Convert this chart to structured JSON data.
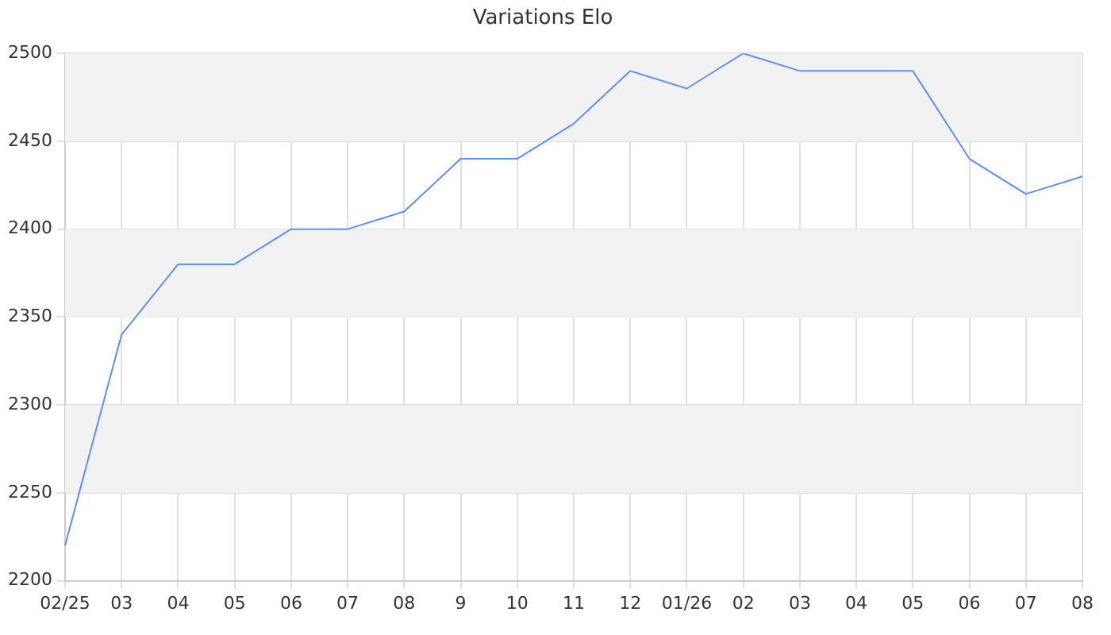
{
  "chart_data": {
    "type": "line",
    "title": "Variations Elo",
    "categories": [
      "02/25",
      "03",
      "04",
      "05",
      "06",
      "07",
      "08",
      "9",
      "10",
      "11",
      "12",
      "01/26",
      "02",
      "03",
      "04",
      "05",
      "06",
      "07",
      "08"
    ],
    "series": [
      {
        "color": "#5b8ff9",
        "values": [
          2220,
          2340,
          2380,
          2380,
          2400,
          2400,
          2410,
          2440,
          2440,
          2460,
          2490,
          2480,
          2500,
          2490,
          2490,
          2490,
          2440,
          2420,
          2430
        ]
      }
    ],
    "ylim": [
      2200,
      2500
    ],
    "yticks": [
      2200,
      2250,
      2300,
      2350,
      2400,
      2450,
      2500
    ],
    "bands": [
      {
        "axis": "y",
        "from": 2250,
        "to": 2300,
        "color": "#f2f2f2"
      },
      {
        "axis": "y",
        "from": 2350,
        "to": 2400,
        "color": "#f2f2f2"
      },
      {
        "axis": "y",
        "from": 2450,
        "to": 2500,
        "color": "#f2f2f2"
      }
    ],
    "grid": true,
    "legend": false,
    "marker": "none",
    "line_style": "solid"
  }
}
